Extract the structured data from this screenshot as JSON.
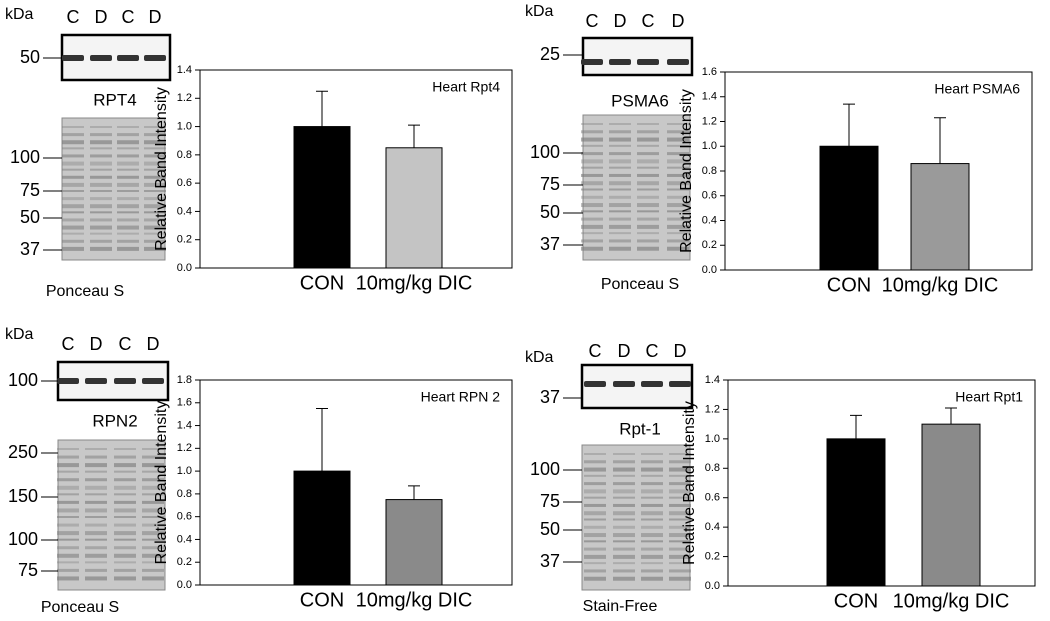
{
  "chart_data": [
    {
      "type": "bar",
      "title": "Heart Rpt4",
      "y_label": "Relative Band Intensity",
      "categories": [
        "CON",
        "10mg/kg DIC"
      ],
      "values": [
        1.0,
        0.85
      ],
      "errors": [
        0.25,
        0.16
      ],
      "colors": [
        "#000000",
        "#c4c4c4"
      ],
      "ylim": [
        0,
        1.4
      ],
      "yticks": [
        {
          "value": 0,
          "label": "0.0"
        },
        0.2,
        0.4,
        0.6,
        0.8,
        {
          "value": 1,
          "label": "1.0"
        },
        1.2,
        1.4
      ]
    },
    {
      "type": "bar",
      "title": "Heart PSMA6",
      "y_label": "Relative Band Intensity",
      "categories": [
        "CON",
        "10mg/kg DIC"
      ],
      "values": [
        1.0,
        0.86
      ],
      "errors": [
        0.34,
        0.37
      ],
      "colors": [
        "#000000",
        "#9a9a9a"
      ],
      "ylim": [
        0,
        1.6
      ],
      "yticks": [
        {
          "value": 0,
          "label": "0.0"
        },
        0.2,
        0.4,
        0.6,
        0.8,
        {
          "value": 1,
          "label": "1.0"
        },
        1.2,
        1.4,
        1.6
      ]
    },
    {
      "type": "bar",
      "title": "Heart RPN 2",
      "y_label": "Relative Band Intensity",
      "categories": [
        "CON",
        "10mg/kg DIC"
      ],
      "values": [
        1.0,
        0.75
      ],
      "errors": [
        0.55,
        0.12
      ],
      "colors": [
        "#000000",
        "#8a8a8a"
      ],
      "ylim": [
        0,
        1.8
      ],
      "yticks": [
        {
          "value": 0,
          "label": "0.0"
        },
        0.2,
        0.4,
        0.6,
        0.8,
        {
          "value": 1,
          "label": "1.0"
        },
        1.2,
        1.4,
        1.6,
        1.8
      ]
    },
    {
      "type": "bar",
      "title": "Heart Rpt1",
      "y_label": "Relative Band Intensity",
      "categories": [
        "CON",
        "10mg/kg DIC"
      ],
      "values": [
        1.0,
        1.1
      ],
      "errors": [
        0.16,
        0.11
      ],
      "colors": [
        "#000000",
        "#8a8a8a"
      ],
      "ylim": [
        0,
        1.4
      ],
      "yticks": [
        {
          "value": 0,
          "label": "0.0"
        },
        0.2,
        0.4,
        0.6,
        0.8,
        {
          "value": 1,
          "label": "1.0"
        },
        1.2,
        1.4
      ]
    }
  ],
  "blots": [
    {
      "kda": "kDa",
      "lanes": [
        "C",
        "D",
        "C",
        "D"
      ],
      "blot_markers": [
        "50"
      ],
      "protein": "RPT4",
      "stain_markers": [
        "100",
        "75",
        "50",
        "37"
      ],
      "stain": "Ponceau S"
    },
    {
      "kda": "kDa",
      "lanes": [
        "C",
        "D",
        "C",
        "D"
      ],
      "blot_markers": [
        "25"
      ],
      "protein": "PSMA6",
      "stain_markers": [
        "100",
        "75",
        "50",
        "37"
      ],
      "stain": "Ponceau S"
    },
    {
      "kda": "kDa",
      "lanes": [
        "C",
        "D",
        "C",
        "D"
      ],
      "blot_markers": [
        "100"
      ],
      "protein": "RPN2",
      "stain_markers": [
        "250",
        "150",
        "100",
        "75"
      ],
      "stain": "Ponceau S"
    },
    {
      "kda": "kDa",
      "lanes": [
        "C",
        "D",
        "C",
        "D"
      ],
      "blot_markers": [
        "37"
      ],
      "protein": "Rpt-1",
      "stain_markers": [
        "100",
        "75",
        "50",
        "37"
      ],
      "stain": "Stain-Free"
    }
  ]
}
